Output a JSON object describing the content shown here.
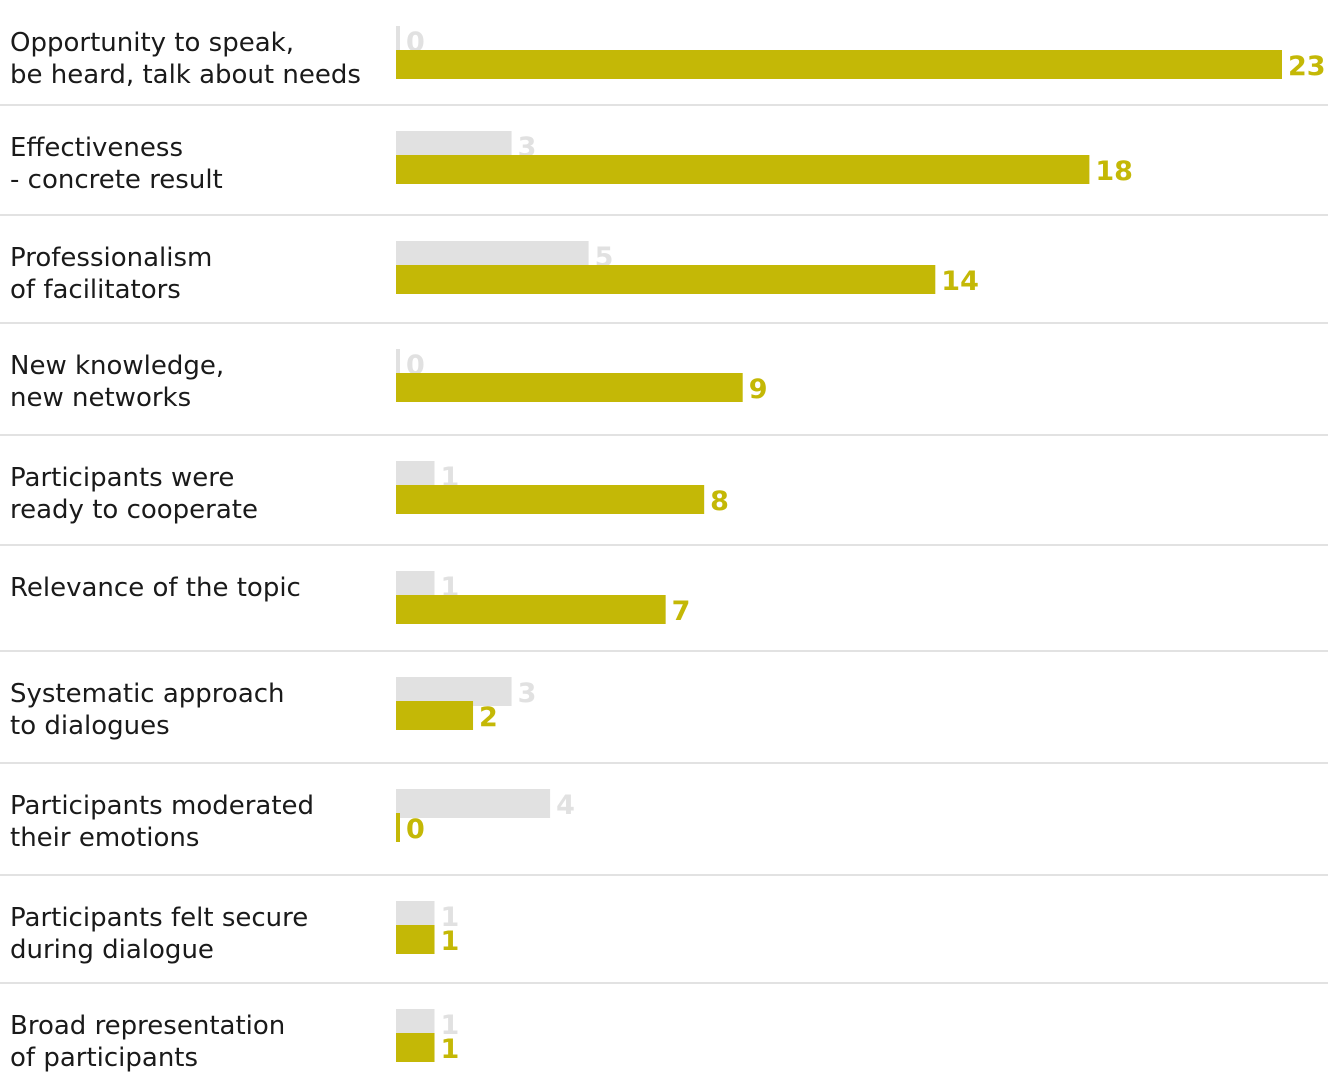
{
  "chart_data": {
    "type": "bar",
    "orientation": "horizontal",
    "categories": [
      [
        "Opportunity to speak,",
        "be heard, talk about needs"
      ],
      [
        "Effectiveness",
        "- concrete result"
      ],
      [
        "Professionalism",
        "of facilitators"
      ],
      [
        "New knowledge,",
        "new networks"
      ],
      [
        "Participants were",
        "ready to cooperate"
      ],
      [
        "Relevance of the topic"
      ],
      [
        "Systematic approach",
        "to dialogues"
      ],
      [
        "Participants moderated",
        "their emotions"
      ],
      [
        "Participants felt secure",
        "during dialogue"
      ],
      [
        "Broad representation",
        "of participants"
      ]
    ],
    "series": [
      {
        "values": [
          0,
          3,
          5,
          0,
          1,
          1,
          3,
          4,
          1,
          1
        ],
        "color": "#e1e1e1"
      },
      {
        "values": [
          23,
          18,
          14,
          9,
          8,
          7,
          2,
          0,
          1,
          1
        ],
        "color": "#c4b806"
      }
    ],
    "xlim": [
      0,
      23
    ],
    "grid": false,
    "legend": "none",
    "title": "",
    "xlabel": "",
    "ylabel": ""
  }
}
